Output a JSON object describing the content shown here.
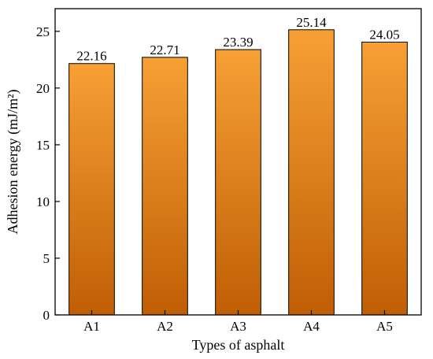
{
  "chart_data": {
    "type": "bar",
    "categories": [
      "A1",
      "A2",
      "A3",
      "A4",
      "A5"
    ],
    "values": [
      22.16,
      22.71,
      23.39,
      25.14,
      24.05
    ],
    "data_labels": [
      "22.16",
      "22.71",
      "23.39",
      "25.14",
      "24.05"
    ],
    "xlabel": "Types of asphalt",
    "ylabel": "Adhesion energy (mJ/m²)",
    "ylim": [
      0,
      27
    ],
    "yticks": [
      0,
      5,
      10,
      15,
      20,
      25
    ],
    "grid": false,
    "legend": "none",
    "bar_gradient": [
      "#f7a035",
      "#c05e05"
    ],
    "bar_edge_color": "#000000"
  }
}
